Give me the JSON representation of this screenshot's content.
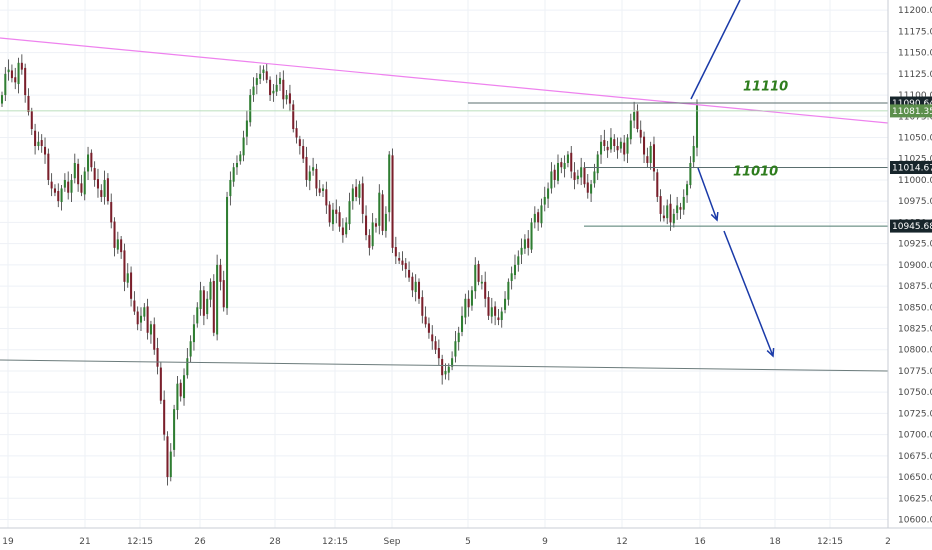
{
  "chart_data": {
    "type": "candlestick",
    "colors": {
      "up": "#2f7d32",
      "down": "#7a1f2b",
      "grid": "#eef1f6",
      "axis_text": "#4a4a4a",
      "trendline": "#ee82ee",
      "support": "#6b7b7b",
      "arrow": "#1a3aa8",
      "annotation": "#2e7d1d"
    },
    "ylim": [
      10590,
      11212
    ],
    "y_ticks": [
      "11200.00",
      "11175.00",
      "11150.00",
      "11125.00",
      "11100.00",
      "11075.00",
      "11050.00",
      "11025.00",
      "11000.00",
      "10975.00",
      "10950.00",
      "10925.00",
      "10900.00",
      "10875.00",
      "10850.00",
      "10825.00",
      "10800.00",
      "10775.00",
      "10750.00",
      "10725.00",
      "10700.00",
      "10675.00",
      "10650.00",
      "10625.00",
      "10600.00"
    ],
    "x_ticks": [
      "19",
      "21",
      "12:15",
      "26",
      "28",
      "12:15",
      "Sep",
      "5",
      "9",
      "12",
      "16",
      "18",
      "12:15",
      "2"
    ],
    "price_tags": [
      {
        "label": "11090.64",
        "value": 11090.64,
        "style": "dark"
      },
      {
        "label": "11081.35",
        "value": 11081.35,
        "style": "green"
      },
      {
        "label": "11014.67",
        "value": 11014.67,
        "style": "dark"
      },
      {
        "label": "10945.68",
        "value": 10945.68,
        "style": "dark"
      }
    ],
    "annotations": [
      {
        "text": "11110",
        "value": 11110
      },
      {
        "text": "11010",
        "value": 11010
      }
    ],
    "candles_close": [
      11100,
      11125,
      11130,
      11120,
      11115,
      11138,
      11130,
      11100,
      11080,
      11060,
      11040,
      11045,
      11040,
      11030,
      11000,
      10990,
      10985,
      10975,
      10990,
      11000,
      10985,
      11000,
      11020,
      10995,
      10985,
      11010,
      11030,
      11015,
      11000,
      10990,
      10980,
      11000,
      10975,
      10950,
      10920,
      10930,
      10915,
      10880,
      10890,
      10860,
      10845,
      10830,
      10840,
      10850,
      10820,
      10830,
      10800,
      10780,
      10740,
      10700,
      10650,
      10680,
      10730,
      10760,
      10745,
      10770,
      10790,
      10810,
      10830,
      10850,
      10870,
      10840,
      10860,
      10880,
      10820,
      10900,
      10880,
      10850,
      10980,
      11000,
      11015,
      11020,
      11030,
      11050,
      11070,
      11100,
      11110,
      11120,
      11125,
      11130,
      11118,
      11100,
      11105,
      11112,
      11120,
      11095,
      11100,
      11090,
      11060,
      11050,
      11040,
      11025,
      11000,
      11010,
      11015,
      10990,
      10985,
      10990,
      10970,
      10950,
      10965,
      10960,
      10945,
      10935,
      10950,
      10975,
      10990,
      10980,
      10995,
      10960,
      10935,
      10920,
      10950,
      10945,
      10985,
      10940,
      10960,
      11030,
      10920,
      10910,
      10905,
      10900,
      10895,
      10885,
      10870,
      10880,
      10860,
      10840,
      10830,
      10820,
      10810,
      10800,
      10790,
      10770,
      10775,
      10780,
      10790,
      10810,
      10820,
      10840,
      10860,
      10850,
      10870,
      10900,
      10880,
      10880,
      10860,
      10840,
      10850,
      10840,
      10835,
      10845,
      10860,
      10880,
      10890,
      10900,
      10910,
      10920,
      10930,
      10920,
      10950,
      10960,
      10950,
      10970,
      10980,
      10990,
      11010,
      11000,
      11020,
      11015,
      11020,
      11030,
      11010,
      11000,
      11005,
      11015,
      10995,
      10985,
      10995,
      11010,
      11030,
      11045,
      11040,
      11035,
      11050,
      11040,
      11035,
      11045,
      11030,
      11050,
      11070,
      11080,
      11060,
      11050,
      11030,
      11020,
      11040,
      11010,
      10980,
      10960,
      10955,
      10970,
      10950,
      10960,
      10970,
      10965,
      10980,
      10995,
      11020,
      11040,
      11088
    ]
  }
}
